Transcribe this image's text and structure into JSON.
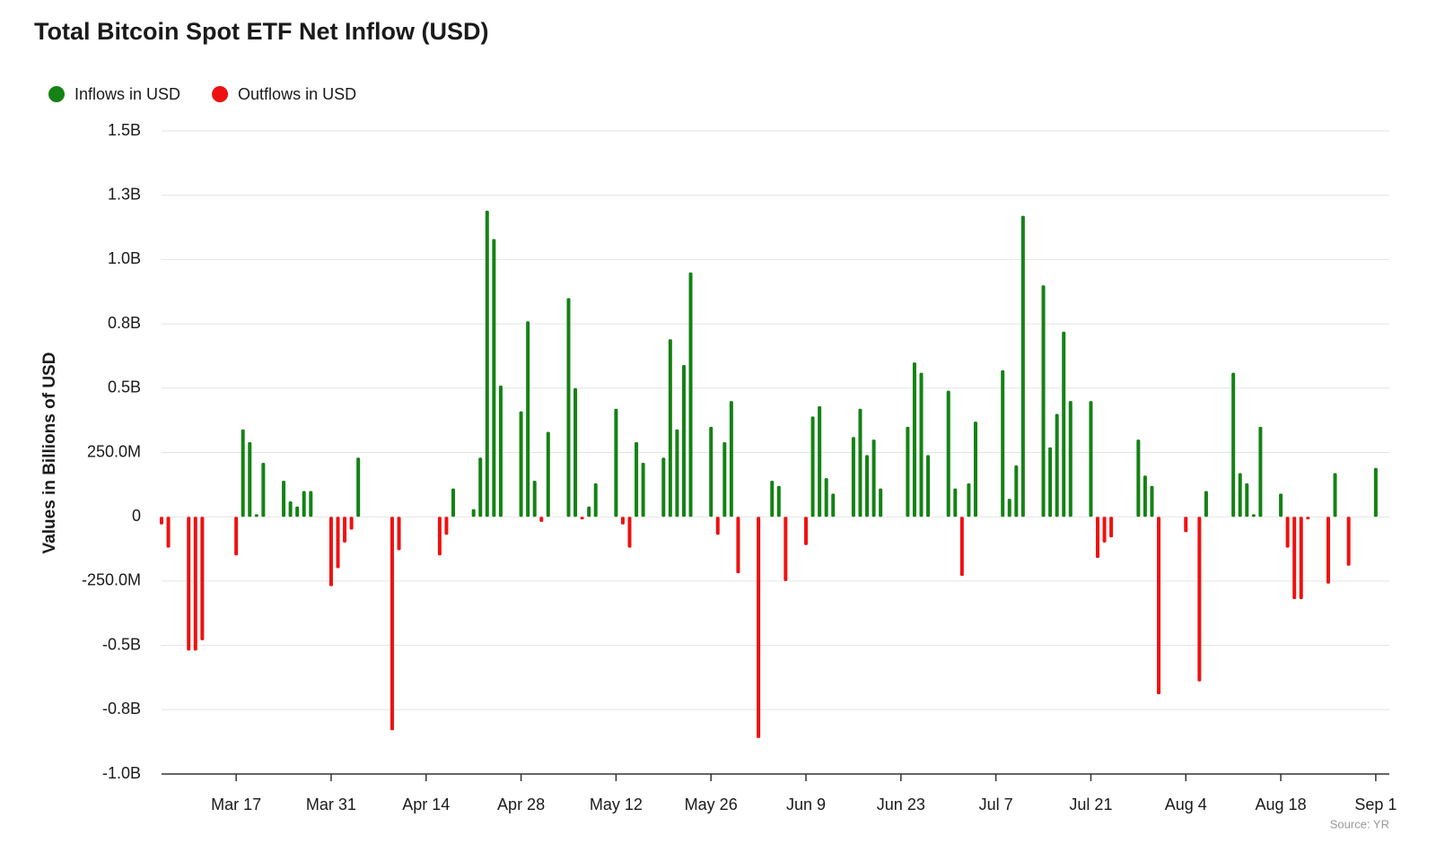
{
  "chart_data": {
    "type": "bar",
    "title": "Total Bitcoin Spot ETF Net Inflow (USD)",
    "y_label": "Values in Billions of USD",
    "source": "Source: YR",
    "legend": "top-left",
    "grid": true,
    "ylim": [
      -1.0,
      1.5
    ],
    "yticks": [
      {
        "value": 1.5,
        "label": "1.5B"
      },
      {
        "value": 1.25,
        "label": "1.3B"
      },
      {
        "value": 1.0,
        "label": "1.0B"
      },
      {
        "value": 0.75,
        "label": "0.8B"
      },
      {
        "value": 0.5,
        "label": "0.5B"
      },
      {
        "value": 0.25,
        "label": "250.0M"
      },
      0,
      {
        "value": -0.25,
        "label": "-250.0M"
      },
      {
        "value": -0.5,
        "label": "-0.5B"
      },
      {
        "value": -0.75,
        "label": "-0.8B"
      },
      {
        "value": -1.0,
        "label": "-1.0B"
      }
    ],
    "xlim": [
      "Mar 6",
      "Sep 3"
    ],
    "xticks": [
      "Mar 17",
      "Mar 31",
      "Apr 14",
      "Apr 28",
      "May 12",
      "May 26",
      "Jun 9",
      "Jun 23",
      "Jul 7",
      "Jul 21",
      "Aug 4",
      "Aug 18",
      "Sep 1"
    ],
    "x": [
      "Mar 6",
      "Mar 7",
      "Mar 10",
      "Mar 11",
      "Mar 12",
      "Mar 17",
      "Mar 18",
      "Mar 19",
      "Mar 20",
      "Mar 21",
      "Mar 24",
      "Mar 25",
      "Mar 26",
      "Mar 27",
      "Mar 28",
      "Mar 31",
      "Apr 1",
      "Apr 2",
      "Apr 3",
      "Apr 4",
      "Apr 9",
      "Apr 10",
      "Apr 16",
      "Apr 17",
      "Apr 18",
      "Apr 21",
      "Apr 22",
      "Apr 23",
      "Apr 24",
      "Apr 25",
      "Apr 28",
      "Apr 29",
      "Apr 30",
      "May 1",
      "May 2",
      "May 5",
      "May 6",
      "May 7",
      "May 8",
      "May 9",
      "May 12",
      "May 13",
      "May 14",
      "May 15",
      "May 16",
      "May 19",
      "May 20",
      "May 21",
      "May 22",
      "May 23",
      "May 26",
      "May 27",
      "May 28",
      "May 29",
      "May 30",
      "Jun 2",
      "Jun 4",
      "Jun 5",
      "Jun 6",
      "Jun 9",
      "Jun 10",
      "Jun 11",
      "Jun 12",
      "Jun 13",
      "Jun 16",
      "Jun 17",
      "Jun 18",
      "Jun 19",
      "Jun 20",
      "Jun 24",
      "Jun 25",
      "Jun 26",
      "Jun 27",
      "Jun 30",
      "Jul 1",
      "Jul 2",
      "Jul 3",
      "Jul 4",
      "Jul 8",
      "Jul 9",
      "Jul 10",
      "Jul 11",
      "Jul 14",
      "Jul 15",
      "Jul 16",
      "Jul 17",
      "Jul 18",
      "Jul 21",
      "Jul 22",
      "Jul 23",
      "Jul 24",
      "Jul 28",
      "Jul 29",
      "Jul 30",
      "Jul 31",
      "Aug 4",
      "Aug 6",
      "Aug 7",
      "Aug 11",
      "Aug 12",
      "Aug 13",
      "Aug 14",
      "Aug 15",
      "Aug 18",
      "Aug 19",
      "Aug 20",
      "Aug 21",
      "Aug 22",
      "Aug 25",
      "Aug 26",
      "Aug 28",
      "Sep 1"
    ],
    "series": [
      {
        "name": "Inflows in USD",
        "color": "#148214",
        "values": [
          null,
          null,
          null,
          null,
          null,
          null,
          0.34,
          0.29,
          0.01,
          0.21,
          0.14,
          0.06,
          0.04,
          0.1,
          0.1,
          null,
          null,
          null,
          null,
          0.23,
          null,
          null,
          null,
          null,
          0.11,
          0.03,
          0.23,
          1.19,
          1.08,
          0.51,
          0.41,
          0.76,
          0.14,
          null,
          0.33,
          0.85,
          0.5,
          null,
          0.04,
          0.13,
          0.42,
          null,
          null,
          0.29,
          0.21,
          0.23,
          0.69,
          0.34,
          0.59,
          0.95,
          0.35,
          null,
          0.29,
          0.45,
          null,
          null,
          0.14,
          0.12,
          null,
          null,
          0.39,
          0.43,
          0.15,
          0.09,
          0.31,
          0.42,
          0.24,
          0.3,
          0.11,
          0.35,
          0.6,
          0.56,
          0.24,
          0.49,
          0.11,
          null,
          0.13,
          0.37,
          0.57,
          0.07,
          0.2,
          1.17,
          0.9,
          0.27,
          0.4,
          0.72,
          0.45,
          0.45,
          null,
          null,
          null,
          0.3,
          0.16,
          0.12,
          null,
          null,
          null,
          0.1,
          0.56,
          0.17,
          0.13,
          0.01,
          0.35,
          0.09,
          null,
          null,
          null,
          null,
          null,
          0.17,
          null,
          0.19
        ]
      },
      {
        "name": "Outflows in USD",
        "color": "#ee1111",
        "values": [
          -0.03,
          -0.12,
          -0.52,
          -0.52,
          -0.48,
          -0.15,
          null,
          null,
          null,
          null,
          null,
          null,
          null,
          null,
          null,
          -0.27,
          -0.2,
          -0.1,
          -0.05,
          null,
          -0.83,
          -0.13,
          -0.15,
          -0.07,
          null,
          null,
          null,
          null,
          null,
          null,
          null,
          null,
          null,
          -0.02,
          null,
          null,
          null,
          -0.01,
          null,
          null,
          null,
          -0.03,
          -0.12,
          null,
          null,
          null,
          null,
          null,
          null,
          null,
          null,
          -0.07,
          null,
          null,
          -0.22,
          -0.86,
          null,
          null,
          -0.25,
          -0.11,
          null,
          null,
          null,
          null,
          null,
          null,
          null,
          null,
          null,
          null,
          null,
          null,
          null,
          null,
          null,
          -0.23,
          null,
          null,
          null,
          null,
          null,
          null,
          null,
          null,
          null,
          null,
          null,
          null,
          -0.16,
          -0.1,
          -0.08,
          null,
          null,
          null,
          -0.69,
          -0.06,
          -0.64,
          null,
          null,
          null,
          null,
          null,
          null,
          null,
          -0.12,
          -0.32,
          -0.32,
          -0.01,
          -0.26,
          null,
          -0.19,
          null
        ]
      }
    ]
  }
}
